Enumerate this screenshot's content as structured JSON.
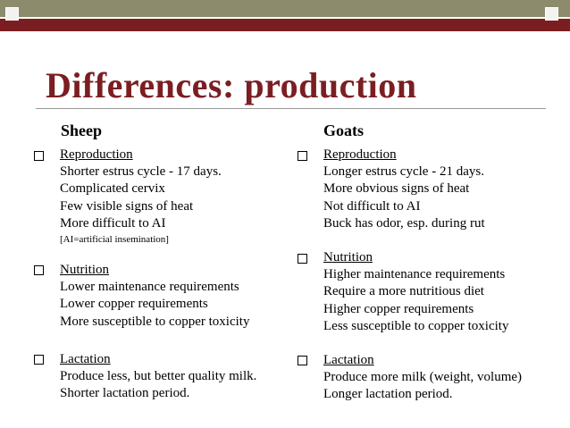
{
  "slide": {
    "title": "Differences:  production",
    "columns": [
      {
        "heading": "Sheep",
        "items": [
          {
            "heading": "Reproduction",
            "lines": [
              "Shorter estrus cycle - 17 days.",
              "Complicated cervix",
              "Few visible signs of heat",
              "More difficult to AI"
            ],
            "note": "[AI=artificial insemination]"
          },
          {
            "heading": "Nutrition",
            "lines": [
              "Lower maintenance requirements",
              "Lower copper requirements",
              "More susceptible to copper toxicity"
            ]
          },
          {
            "heading": "Lactation",
            "lines": [
              "Produce less, but better quality milk.",
              "Shorter lactation period."
            ]
          }
        ]
      },
      {
        "heading": "Goats",
        "items": [
          {
            "heading": "Reproduction",
            "lines": [
              "Longer estrus cycle - 21 days.",
              "More obvious signs of heat",
              "Not difficult to AI",
              "Buck has odor, esp. during rut"
            ]
          },
          {
            "heading": "Nutrition",
            "lines": [
              "Higher maintenance requirements",
              "Require a more nutritious diet",
              "Higher copper requirements",
              "Less susceptible to copper toxicity"
            ]
          },
          {
            "heading": "Lactation",
            "lines": [
              "Produce more milk (weight, volume)",
              "Longer lactation period."
            ]
          }
        ]
      }
    ]
  },
  "theme": {
    "title_color": "#7b1e22",
    "band_dark_red": "#7b1e22",
    "band_olive": "#8c8c6c"
  }
}
